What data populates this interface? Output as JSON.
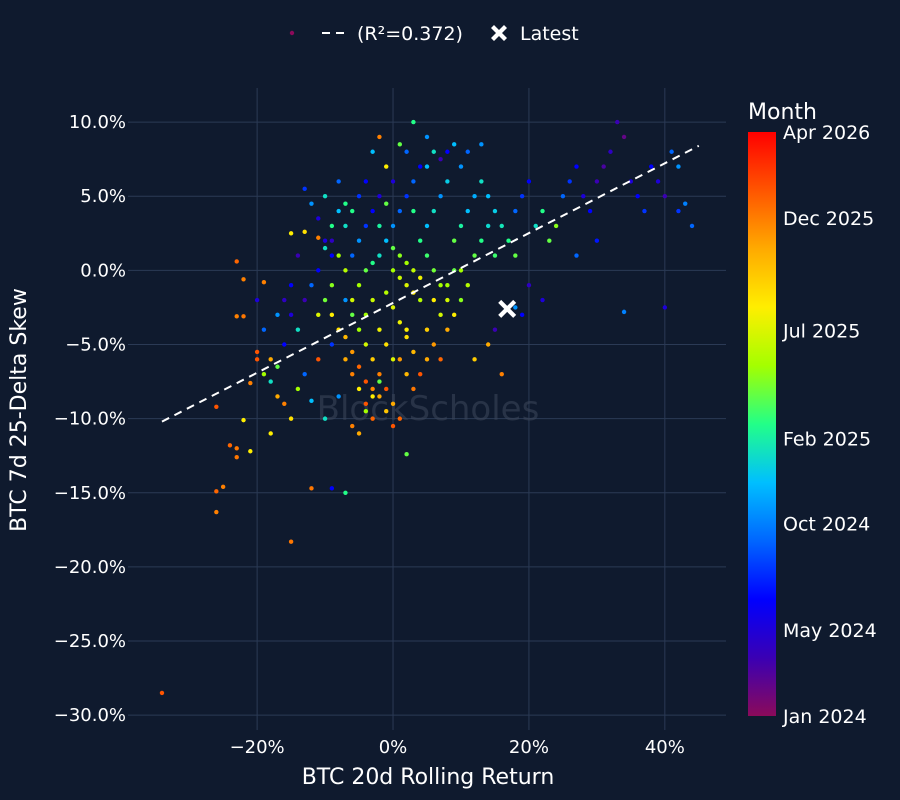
{
  "chart_data": {
    "type": "scatter",
    "title": "",
    "xlabel": "BTC 20d Rolling Return",
    "ylabel": "BTC 7d 25-Delta Skew",
    "xlim": [
      -0.39,
      0.49
    ],
    "ylim": [
      -0.31,
      0.123
    ],
    "x_ticks": [
      -0.2,
      0,
      0.2,
      0.4
    ],
    "x_tick_labels": [
      "−20%",
      "0%",
      "20%",
      "40%"
    ],
    "y_ticks": [
      0.1,
      0.05,
      0,
      -0.05,
      -0.1,
      -0.15,
      -0.2,
      -0.25,
      -0.3
    ],
    "y_tick_labels": [
      "10.0%",
      "5.0%",
      "0.0%",
      "−5.0%",
      "−10.0%",
      "−15.0%",
      "−20.0%",
      "−25.0%",
      "−30.0%"
    ],
    "grid": true,
    "legend": {
      "placement": "top-center",
      "entries": [
        {
          "kind": "marker",
          "label": ""
        },
        {
          "kind": "dash",
          "label": "(R²=0.372)"
        },
        {
          "kind": "cross",
          "label": "Latest"
        }
      ]
    },
    "regression": {
      "r2": 0.372,
      "x": [
        -0.34,
        0.45
      ],
      "y": [
        -0.102,
        0.084
      ]
    },
    "latest": {
      "x": 0.168,
      "y": -0.026
    },
    "colorbar": {
      "title": "Month",
      "ticks": [
        {
          "label": "Apr 2026",
          "t": 1.0
        },
        {
          "label": "Dec 2025",
          "t": 0.853
        },
        {
          "label": "Jul 2025",
          "t": 0.66
        },
        {
          "label": "Feb 2025",
          "t": 0.475
        },
        {
          "label": "Oct 2024",
          "t": 0.33
        },
        {
          "label": "May 2024",
          "t": 0.147
        },
        {
          "label": "Jan 2024",
          "t": 0.0
        }
      ],
      "colors": [
        "#8b0a5a",
        "#3a00b4",
        "#0000ff",
        "#0066ff",
        "#00bfff",
        "#22ff88",
        "#a4ff00",
        "#ffee00",
        "#ffaa00",
        "#ff5500",
        "#ff0000"
      ]
    },
    "watermark": "BlockScholes",
    "sample_points": [
      [
        -0.34,
        -0.285,
        0.9
      ],
      [
        -0.26,
        -0.163,
        0.85
      ],
      [
        -0.26,
        -0.149,
        0.88
      ],
      [
        -0.25,
        -0.146,
        0.85
      ],
      [
        -0.24,
        -0.118,
        0.88
      ],
      [
        -0.23,
        -0.12,
        0.86
      ],
      [
        -0.23,
        -0.126,
        0.86
      ],
      [
        -0.22,
        -0.101,
        0.7
      ],
      [
        -0.21,
        -0.076,
        0.85
      ],
      [
        -0.2,
        -0.06,
        0.9
      ],
      [
        -0.2,
        -0.055,
        0.9
      ],
      [
        -0.23,
        -0.031,
        0.85
      ],
      [
        -0.22,
        -0.031,
        0.86
      ],
      [
        -0.22,
        -0.006,
        0.85
      ],
      [
        -0.23,
        0.006,
        0.88
      ],
      [
        -0.19,
        -0.008,
        0.85
      ],
      [
        -0.26,
        -0.092,
        0.9
      ],
      [
        -0.21,
        -0.122,
        0.7
      ],
      [
        -0.18,
        -0.11,
        0.7
      ],
      [
        -0.15,
        -0.183,
        0.86
      ],
      [
        -0.12,
        -0.147,
        0.86
      ],
      [
        -0.09,
        -0.147,
        0.2
      ],
      [
        -0.07,
        -0.15,
        0.5
      ],
      [
        0.02,
        -0.124,
        0.55
      ],
      [
        -0.17,
        -0.085,
        0.8
      ],
      [
        -0.16,
        -0.09,
        0.85
      ],
      [
        -0.15,
        -0.1,
        0.72
      ],
      [
        -0.14,
        -0.08,
        0.6
      ],
      [
        -0.13,
        -0.07,
        0.3
      ],
      [
        -0.12,
        -0.088,
        0.4
      ],
      [
        -0.11,
        -0.06,
        0.9
      ],
      [
        -0.1,
        -0.1,
        0.45
      ],
      [
        -0.09,
        -0.05,
        0.25
      ],
      [
        -0.08,
        -0.085,
        0.35
      ],
      [
        -0.16,
        -0.05,
        0.2
      ],
      [
        -0.15,
        -0.03,
        0.15
      ],
      [
        -0.14,
        -0.04,
        0.45
      ],
      [
        -0.13,
        -0.02,
        0.1
      ],
      [
        -0.12,
        -0.01,
        0.3
      ],
      [
        -0.11,
        0.0,
        0.2
      ],
      [
        -0.1,
        0.015,
        0.45
      ],
      [
        -0.09,
        0.02,
        0.12
      ],
      [
        -0.08,
        0.04,
        0.4
      ],
      [
        -0.07,
        0.045,
        0.5
      ],
      [
        -0.15,
        0.025,
        0.7
      ],
      [
        -0.13,
        0.026,
        0.72
      ],
      [
        -0.11,
        0.022,
        0.85
      ],
      [
        -0.1,
        0.02,
        0.15
      ],
      [
        -0.09,
        0.01,
        0.2
      ],
      [
        -0.07,
        -0.02,
        0.35
      ],
      [
        -0.06,
        -0.03,
        0.55
      ],
      [
        -0.05,
        -0.04,
        0.6
      ],
      [
        -0.04,
        -0.05,
        0.65
      ],
      [
        -0.03,
        -0.06,
        0.75
      ],
      [
        -0.02,
        -0.07,
        0.85
      ],
      [
        -0.01,
        -0.08,
        0.9
      ],
      [
        0.0,
        -0.09,
        0.8
      ],
      [
        0.01,
        -0.1,
        0.88
      ],
      [
        0.02,
        -0.04,
        0.7
      ],
      [
        -0.07,
        -0.06,
        0.8
      ],
      [
        -0.06,
        -0.07,
        0.85
      ],
      [
        -0.05,
        -0.08,
        0.7
      ],
      [
        -0.04,
        -0.09,
        0.9
      ],
      [
        -0.03,
        -0.1,
        0.88
      ],
      [
        -0.06,
        -0.105,
        0.85
      ],
      [
        -0.05,
        -0.11,
        0.8
      ],
      [
        -0.04,
        -0.095,
        0.6
      ],
      [
        -0.03,
        -0.085,
        0.7
      ],
      [
        -0.02,
        -0.075,
        0.55
      ],
      [
        -0.06,
        -0.02,
        0.65
      ],
      [
        -0.05,
        -0.01,
        0.6
      ],
      [
        -0.04,
        0.0,
        0.55
      ],
      [
        -0.03,
        0.005,
        0.5
      ],
      [
        -0.02,
        0.01,
        0.45
      ],
      [
        -0.01,
        -0.015,
        0.62
      ],
      [
        0.0,
        -0.025,
        0.66
      ],
      [
        0.01,
        -0.035,
        0.68
      ],
      [
        0.02,
        -0.045,
        0.72
      ],
      [
        0.03,
        -0.055,
        0.78
      ],
      [
        -0.06,
        0.01,
        0.3
      ],
      [
        -0.05,
        0.02,
        0.35
      ],
      [
        -0.04,
        0.03,
        0.25
      ],
      [
        -0.03,
        0.04,
        0.2
      ],
      [
        -0.02,
        0.05,
        0.15
      ],
      [
        -0.01,
        0.02,
        0.4
      ],
      [
        0.0,
        0.03,
        0.35
      ],
      [
        0.01,
        0.04,
        0.3
      ],
      [
        0.02,
        0.05,
        0.25
      ],
      [
        0.03,
        0.06,
        0.3
      ],
      [
        0.0,
        0.0,
        0.6
      ],
      [
        0.01,
        -0.005,
        0.64
      ],
      [
        0.02,
        -0.01,
        0.66
      ],
      [
        0.03,
        -0.015,
        0.7
      ],
      [
        0.04,
        -0.02,
        0.62
      ],
      [
        0.0,
        0.015,
        0.55
      ],
      [
        0.01,
        0.01,
        0.58
      ],
      [
        0.02,
        0.005,
        0.6
      ],
      [
        0.03,
        0.0,
        0.63
      ],
      [
        0.04,
        -0.005,
        0.68
      ],
      [
        0.04,
        0.02,
        0.5
      ],
      [
        0.05,
        0.01,
        0.52
      ],
      [
        0.06,
        0.0,
        0.56
      ],
      [
        0.07,
        -0.01,
        0.6
      ],
      [
        0.08,
        -0.02,
        0.65
      ],
      [
        0.05,
        -0.04,
        0.75
      ],
      [
        0.06,
        -0.05,
        0.82
      ],
      [
        0.07,
        -0.06,
        0.88
      ],
      [
        0.08,
        -0.04,
        0.8
      ],
      [
        0.09,
        -0.03,
        0.7
      ],
      [
        0.05,
        0.03,
        0.4
      ],
      [
        0.06,
        0.04,
        0.45
      ],
      [
        0.07,
        0.05,
        0.35
      ],
      [
        0.08,
        0.06,
        0.42
      ],
      [
        0.09,
        0.02,
        0.55
      ],
      [
        0.1,
        0.03,
        0.48
      ],
      [
        0.11,
        0.04,
        0.4
      ],
      [
        0.12,
        0.05,
        0.38
      ],
      [
        0.13,
        0.06,
        0.45
      ],
      [
        0.1,
        0.0,
        0.6
      ],
      [
        0.11,
        -0.01,
        0.62
      ],
      [
        0.12,
        0.01,
        0.55
      ],
      [
        0.13,
        0.02,
        0.5
      ],
      [
        0.14,
        0.03,
        0.44
      ],
      [
        0.15,
        0.01,
        0.52
      ],
      [
        0.1,
        0.07,
        0.35
      ],
      [
        0.11,
        0.08,
        0.3
      ],
      [
        0.09,
        0.085,
        0.4
      ],
      [
        0.08,
        0.08,
        0.2
      ],
      [
        0.07,
        0.075,
        0.1
      ],
      [
        0.14,
        0.05,
        0.4
      ],
      [
        0.15,
        0.04,
        0.42
      ],
      [
        0.16,
        0.03,
        0.46
      ],
      [
        0.17,
        0.02,
        0.5
      ],
      [
        0.18,
        0.01,
        0.55
      ],
      [
        0.18,
        0.04,
        0.3
      ],
      [
        0.19,
        0.05,
        0.25
      ],
      [
        0.2,
        0.06,
        0.2
      ],
      [
        0.21,
        0.03,
        0.45
      ],
      [
        0.22,
        0.04,
        0.5
      ],
      [
        0.23,
        0.02,
        0.55
      ],
      [
        0.24,
        0.03,
        0.58
      ],
      [
        0.25,
        0.05,
        0.3
      ],
      [
        0.26,
        0.06,
        0.25
      ],
      [
        0.27,
        0.07,
        0.2
      ],
      [
        0.28,
        0.05,
        0.15
      ],
      [
        0.29,
        0.04,
        0.2
      ],
      [
        0.3,
        0.06,
        0.1
      ],
      [
        0.31,
        0.07,
        0.08
      ],
      [
        0.32,
        0.08,
        0.12
      ],
      [
        0.33,
        0.1,
        0.1
      ],
      [
        0.34,
        0.09,
        0.05
      ],
      [
        0.35,
        0.06,
        0.15
      ],
      [
        0.36,
        0.05,
        0.2
      ],
      [
        0.37,
        0.04,
        0.25
      ],
      [
        0.38,
        0.07,
        0.2
      ],
      [
        0.39,
        0.06,
        0.15
      ],
      [
        0.4,
        0.05,
        0.1
      ],
      [
        0.41,
        0.08,
        0.3
      ],
      [
        0.42,
        0.07,
        0.35
      ],
      [
        0.43,
        0.045,
        0.33
      ],
      [
        0.44,
        0.03,
        0.3
      ],
      [
        0.42,
        0.04,
        0.25
      ],
      [
        0.4,
        -0.025,
        0.15
      ],
      [
        0.34,
        -0.028,
        0.33
      ],
      [
        0.3,
        0.02,
        0.22
      ],
      [
        0.27,
        0.01,
        0.3
      ],
      [
        0.22,
        -0.02,
        0.15
      ],
      [
        0.2,
        -0.01,
        0.12
      ],
      [
        0.18,
        -0.025,
        0.35
      ],
      [
        0.19,
        -0.03,
        0.2
      ],
      [
        0.15,
        -0.04,
        0.1
      ],
      [
        0.14,
        -0.05,
        0.8
      ],
      [
        0.16,
        -0.07,
        0.85
      ],
      [
        0.12,
        -0.06,
        0.75
      ],
      [
        -0.08,
        0.06,
        0.3
      ],
      [
        -0.07,
        0.03,
        0.45
      ],
      [
        -0.06,
        0.04,
        0.5
      ],
      [
        -0.05,
        0.05,
        0.25
      ],
      [
        -0.04,
        0.06,
        0.2
      ],
      [
        -0.03,
        0.08,
        0.4
      ],
      [
        -0.02,
        0.09,
        0.85
      ],
      [
        -0.01,
        0.07,
        0.7
      ],
      [
        0.0,
        0.06,
        0.15
      ],
      [
        0.02,
        0.08,
        0.3
      ],
      [
        0.04,
        0.07,
        0.2
      ],
      [
        0.05,
        0.09,
        0.35
      ],
      [
        0.06,
        0.08,
        0.45
      ],
      [
        0.03,
        0.1,
        0.5
      ],
      [
        0.01,
        0.085,
        0.55
      ],
      [
        -0.1,
        0.05,
        0.45
      ],
      [
        -0.09,
        0.03,
        0.5
      ],
      [
        -0.11,
        0.035,
        0.15
      ],
      [
        -0.12,
        0.045,
        0.35
      ],
      [
        -0.13,
        0.055,
        0.25
      ],
      [
        -0.14,
        0.01,
        0.1
      ],
      [
        -0.15,
        -0.01,
        0.2
      ],
      [
        -0.16,
        -0.02,
        0.12
      ],
      [
        -0.17,
        -0.03,
        0.35
      ],
      [
        -0.18,
        -0.06,
        0.8
      ],
      [
        -0.19,
        -0.04,
        0.3
      ],
      [
        -0.2,
        -0.02,
        0.15
      ],
      [
        -0.19,
        -0.07,
        0.6
      ],
      [
        -0.18,
        -0.075,
        0.45
      ],
      [
        -0.17,
        -0.065,
        0.55
      ],
      [
        -0.09,
        -0.03,
        0.7
      ],
      [
        -0.08,
        -0.04,
        0.72
      ],
      [
        -0.07,
        -0.045,
        0.78
      ],
      [
        -0.06,
        -0.055,
        0.82
      ],
      [
        -0.05,
        -0.065,
        0.88
      ],
      [
        -0.04,
        -0.075,
        0.9
      ],
      [
        -0.03,
        -0.08,
        0.84
      ],
      [
        -0.02,
        -0.085,
        0.8
      ],
      [
        -0.01,
        -0.095,
        0.76
      ],
      [
        0.0,
        -0.105,
        0.9
      ],
      [
        0.01,
        -0.06,
        0.82
      ],
      [
        0.02,
        -0.07,
        0.78
      ],
      [
        0.03,
        -0.08,
        0.86
      ],
      [
        0.04,
        -0.07,
        0.9
      ],
      [
        0.05,
        -0.06,
        0.8
      ],
      [
        0.06,
        -0.02,
        0.7
      ],
      [
        0.07,
        -0.03,
        0.65
      ],
      [
        0.08,
        -0.01,
        0.6
      ],
      [
        0.09,
        0.0,
        0.55
      ],
      [
        0.1,
        -0.02,
        0.58
      ],
      [
        -0.07,
        0.0,
        0.62
      ],
      [
        -0.08,
        0.01,
        0.6
      ],
      [
        -0.09,
        -0.01,
        0.58
      ],
      [
        -0.1,
        -0.02,
        0.56
      ],
      [
        -0.11,
        -0.03,
        0.66
      ],
      [
        0.13,
        0.085,
        0.35
      ],
      [
        0.05,
        0.07,
        0.4
      ],
      [
        0.03,
        0.04,
        0.5
      ],
      [
        -0.01,
        0.045,
        0.55
      ],
      [
        -0.02,
        0.03,
        0.48
      ],
      [
        -0.04,
        -0.03,
        0.6
      ],
      [
        -0.03,
        -0.02,
        0.64
      ],
      [
        -0.02,
        -0.04,
        0.68
      ],
      [
        -0.01,
        -0.05,
        0.72
      ],
      [
        0.0,
        -0.06,
        0.66
      ]
    ]
  }
}
